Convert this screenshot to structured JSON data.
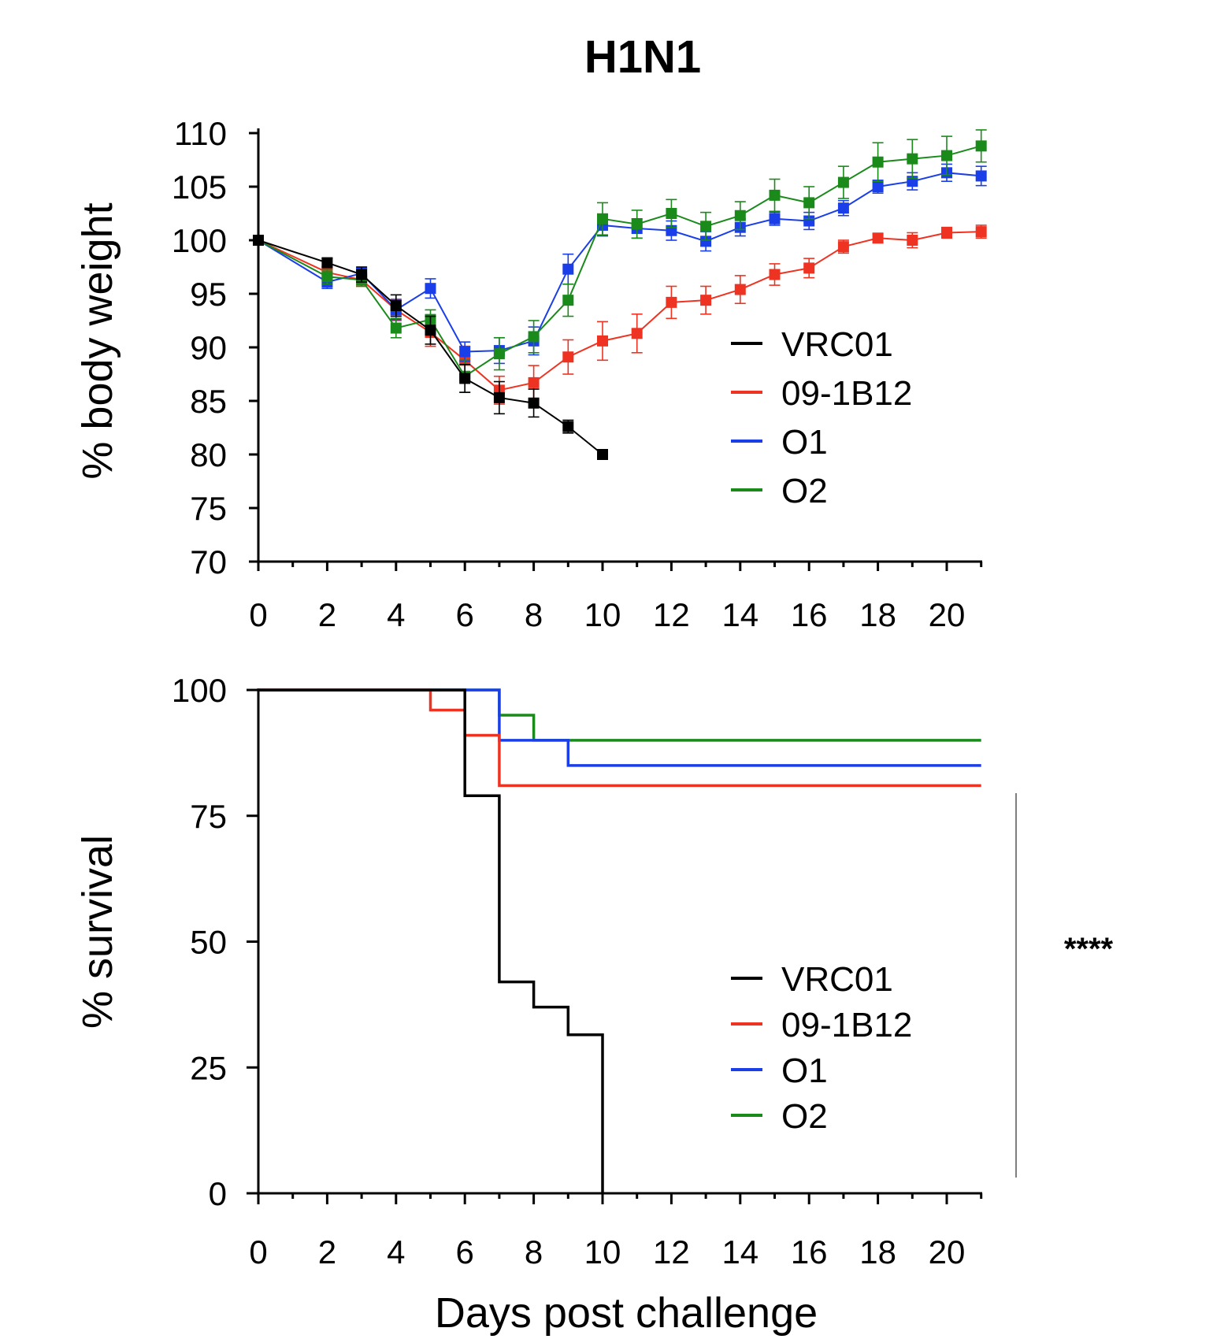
{
  "title": "H1N1",
  "colors": {
    "VRC01": "#000000",
    "09-1B12": "#ee3322",
    "O1": "#1a3ee8",
    "O2": "#1a8a1a"
  },
  "significance": "****",
  "chart_data": [
    {
      "type": "line",
      "title": "H1N1",
      "ylabel": "% body weight",
      "xlabel": "",
      "xlim": [
        0,
        21
      ],
      "ylim": [
        70,
        110
      ],
      "xticks": [
        "0",
        "2",
        "4",
        "6",
        "8",
        "10",
        "12",
        "14",
        "16",
        "18",
        "20"
      ],
      "yticks": [
        "70",
        "75",
        "80",
        "85",
        "90",
        "95",
        "100",
        "105",
        "110"
      ],
      "legend": [
        "VRC01",
        "09-1B12",
        "O1",
        "O2"
      ],
      "series": [
        {
          "name": "VRC01",
          "x": [
            0,
            2,
            3,
            4,
            5,
            6,
            7,
            8,
            9,
            10
          ],
          "y": [
            100,
            97.9,
            96.8,
            93.9,
            91.6,
            87.1,
            85.3,
            84.8,
            82.6,
            80.0
          ],
          "err": [
            0.3,
            0.4,
            0.7,
            1.0,
            1.3,
            1.3,
            1.5,
            1.3,
            0.6,
            0.2
          ]
        },
        {
          "name": "09-1B12",
          "x": [
            0,
            2,
            3,
            4,
            5,
            6,
            7,
            8,
            9,
            10,
            11,
            12,
            13,
            14,
            15,
            16,
            17,
            18,
            19,
            20,
            21
          ],
          "y": [
            100,
            97.0,
            96.3,
            93.5,
            91.4,
            88.8,
            86.0,
            86.7,
            89.1,
            90.6,
            91.3,
            94.2,
            94.4,
            95.4,
            96.8,
            97.4,
            99.4,
            100.2,
            100.0,
            100.7,
            100.8
          ],
          "err": [
            0.3,
            0.6,
            0.6,
            1.0,
            1.3,
            1.3,
            1.3,
            1.6,
            1.6,
            1.8,
            1.8,
            1.5,
            1.3,
            1.3,
            1.0,
            0.9,
            0.6,
            0.4,
            0.7,
            0.5,
            0.6
          ]
        },
        {
          "name": "O1",
          "x": [
            0,
            2,
            3,
            4,
            5,
            6,
            7,
            8,
            9,
            10,
            11,
            12,
            13,
            14,
            15,
            16,
            17,
            18,
            19,
            20,
            21
          ],
          "y": [
            100,
            96.1,
            96.9,
            93.5,
            95.5,
            89.6,
            89.7,
            90.6,
            97.3,
            101.4,
            101.1,
            100.9,
            99.9,
            101.2,
            102.0,
            101.8,
            103.0,
            105.0,
            105.5,
            106.3,
            106.0
          ],
          "err": [
            0.2,
            0.6,
            0.5,
            0.9,
            0.9,
            0.9,
            1.2,
            1.3,
            1.4,
            1.0,
            0.9,
            0.9,
            0.9,
            0.8,
            0.6,
            0.8,
            0.7,
            0.6,
            0.8,
            0.8,
            0.9
          ]
        },
        {
          "name": "O2",
          "x": [
            0,
            2,
            3,
            4,
            5,
            6,
            7,
            8,
            9,
            10,
            11,
            12,
            13,
            14,
            15,
            16,
            17,
            18,
            19,
            20,
            21
          ],
          "y": [
            100,
            96.6,
            96.3,
            91.8,
            92.6,
            87.3,
            89.4,
            91.0,
            94.4,
            102.0,
            101.5,
            102.5,
            101.3,
            102.3,
            104.2,
            103.5,
            105.4,
            107.3,
            107.6,
            107.9,
            108.8
          ],
          "err": [
            0.2,
            0.7,
            0.6,
            0.9,
            0.9,
            1.5,
            1.5,
            1.5,
            1.5,
            1.5,
            1.3,
            1.3,
            1.3,
            1.3,
            1.5,
            1.5,
            1.5,
            1.8,
            1.8,
            1.8,
            1.5
          ]
        }
      ]
    },
    {
      "type": "line",
      "step": true,
      "title": "",
      "ylabel": "% survival",
      "xlabel": "Days post challenge",
      "xlim": [
        0,
        21
      ],
      "ylim": [
        0,
        100
      ],
      "xticks": [
        "0",
        "2",
        "4",
        "6",
        "8",
        "10",
        "12",
        "14",
        "16",
        "18",
        "20"
      ],
      "yticks": [
        "0",
        "25",
        "50",
        "75",
        "100"
      ],
      "legend": [
        "VRC01",
        "09-1B12",
        "O1",
        "O2"
      ],
      "series": [
        {
          "name": "VRC01",
          "x": [
            0,
            6,
            7,
            8,
            9,
            10
          ],
          "y": [
            100,
            79,
            42,
            37,
            31.5,
            0
          ]
        },
        {
          "name": "09-1B12",
          "x": [
            0,
            5,
            6,
            7,
            21
          ],
          "y": [
            100,
            96,
            91,
            81,
            81
          ]
        },
        {
          "name": "O1",
          "x": [
            0,
            7,
            9,
            21
          ],
          "y": [
            100,
            90,
            85,
            85
          ]
        },
        {
          "name": "O2",
          "x": [
            0,
            7,
            8,
            21
          ],
          "y": [
            100,
            95,
            90,
            90
          ]
        }
      ]
    }
  ]
}
